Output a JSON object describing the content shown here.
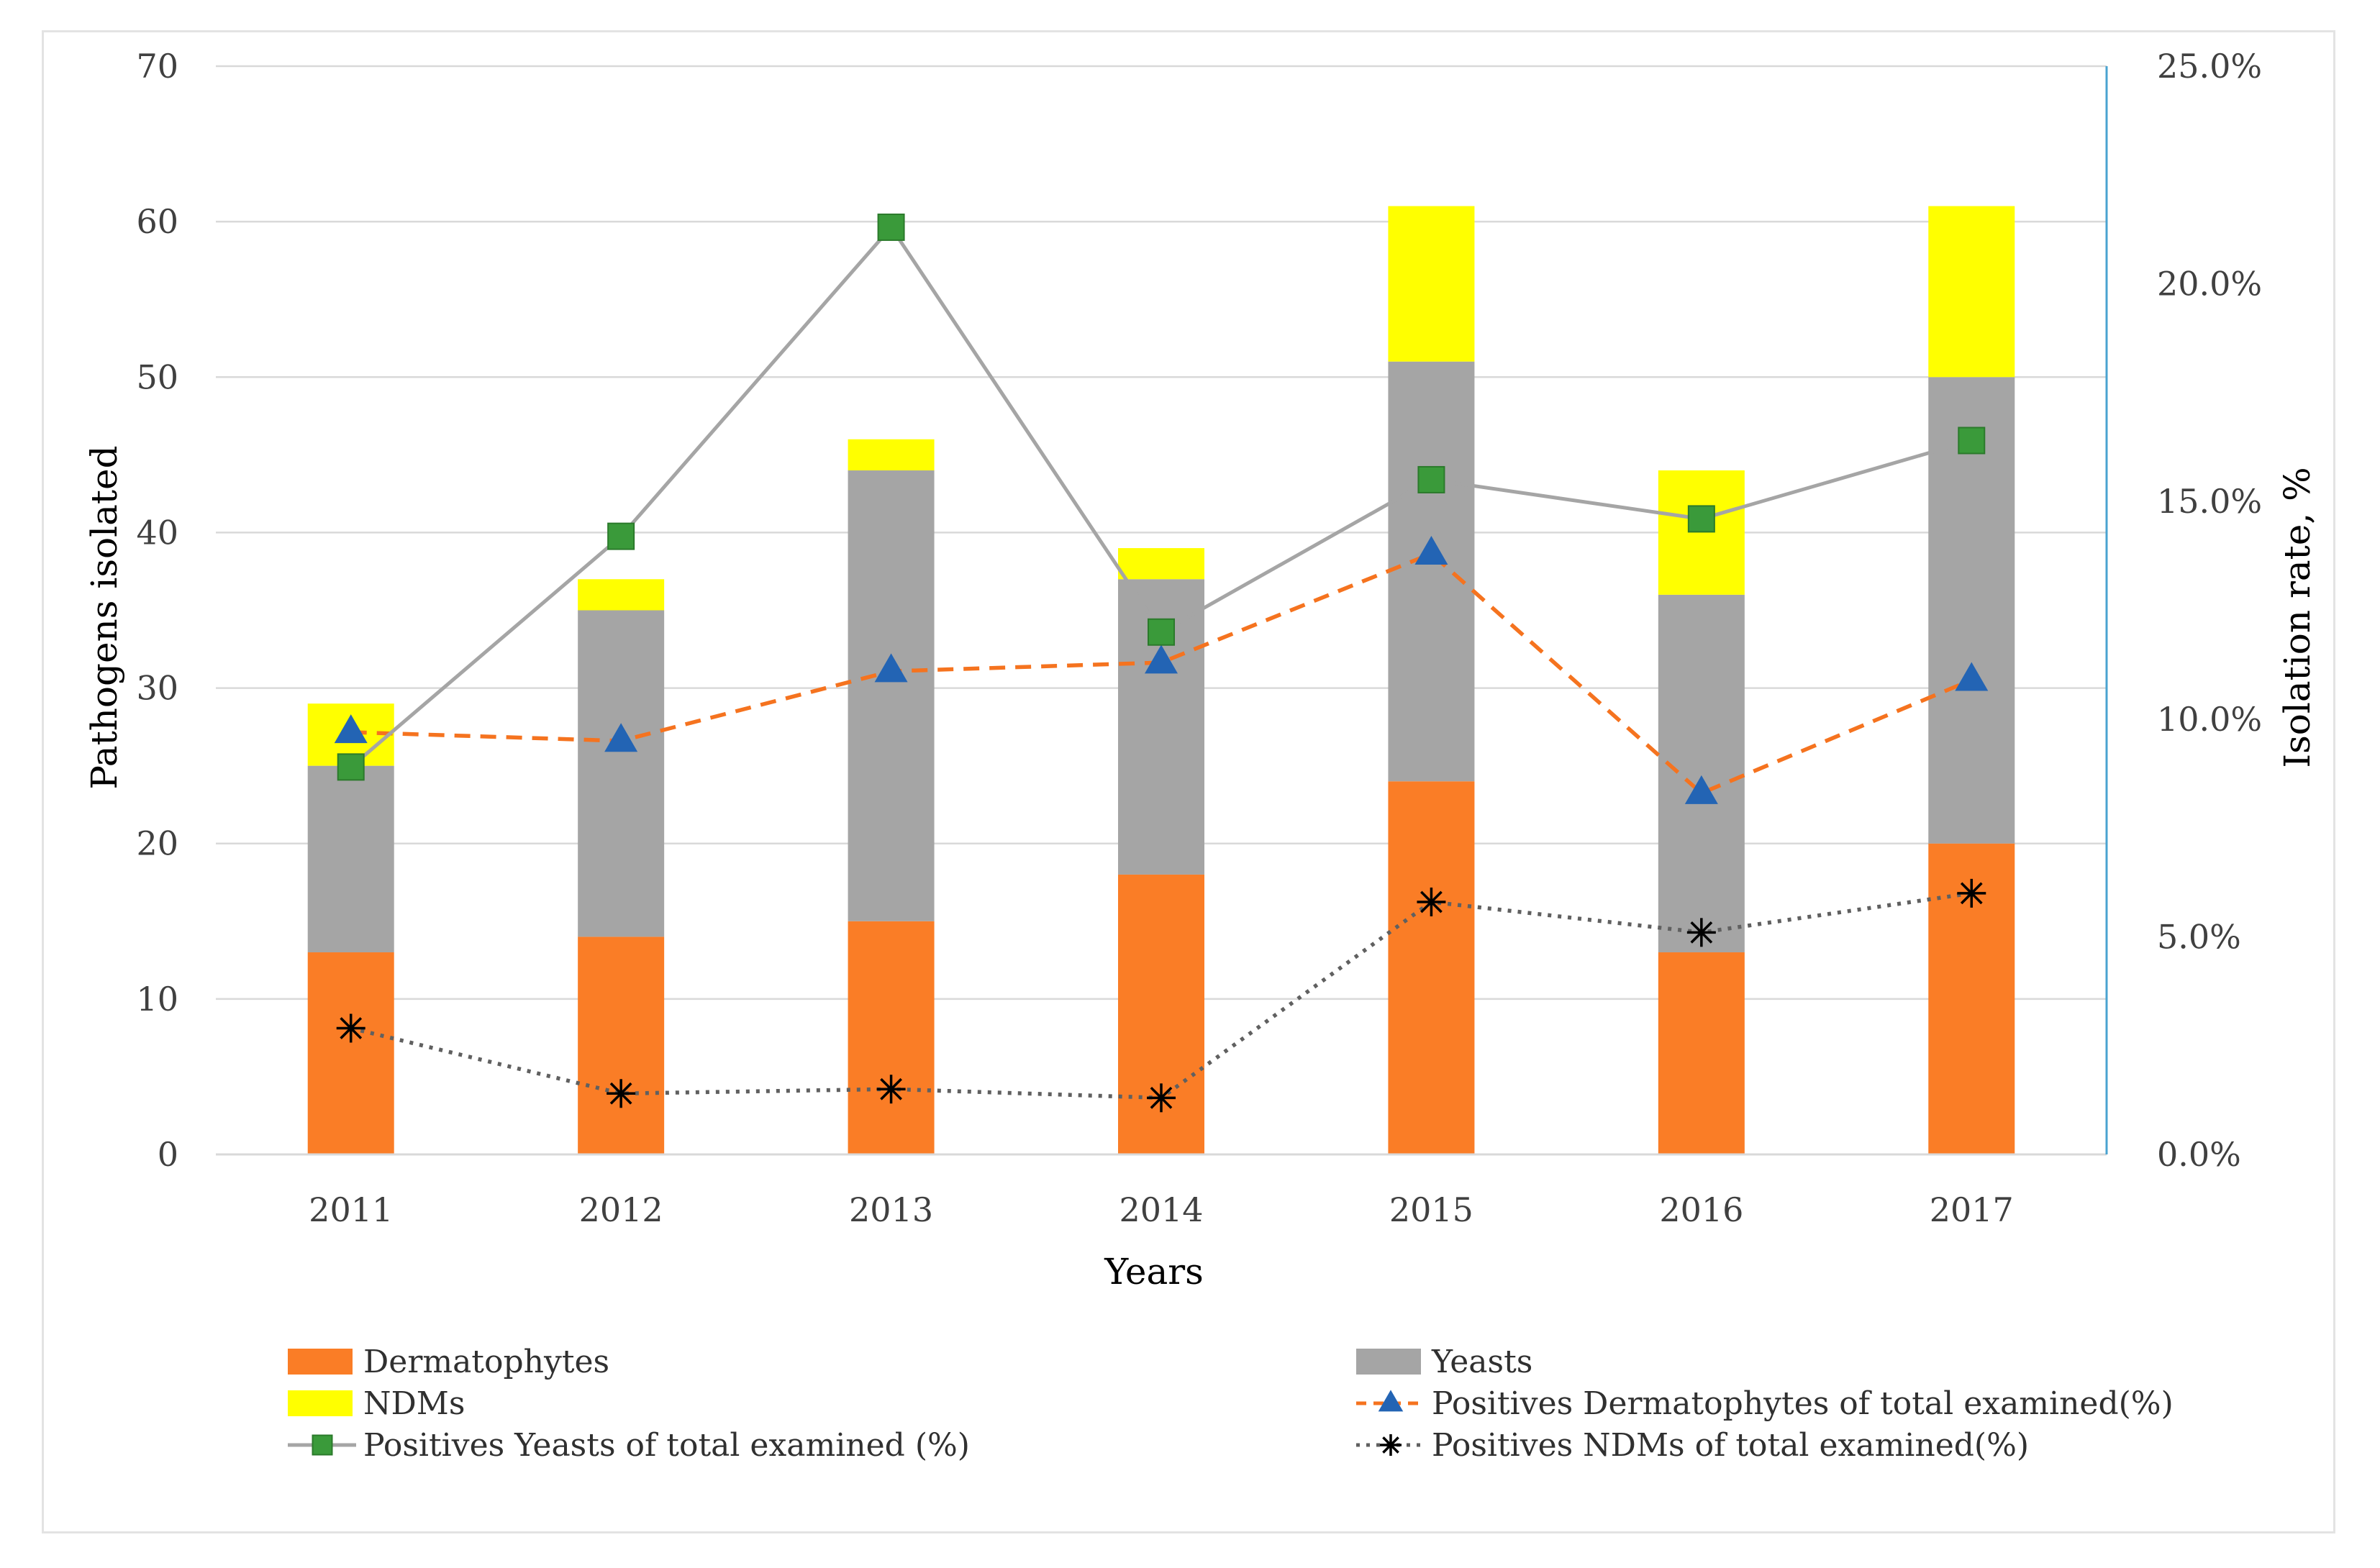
{
  "chart_data": {
    "type": "bar",
    "stacked": true,
    "categories": [
      "2011",
      "2012",
      "2013",
      "2014",
      "2015",
      "2016",
      "2017"
    ],
    "series": [
      {
        "name": "Dermatophytes",
        "kind": "bar",
        "color": "#fa7d26",
        "values": [
          13,
          14,
          15,
          18,
          24,
          13,
          20
        ]
      },
      {
        "name": "Yeasts",
        "kind": "bar",
        "color": "#a5a5a5",
        "values": [
          12,
          21,
          29,
          19,
          27,
          23,
          30
        ]
      },
      {
        "name": "NDMs",
        "kind": "bar",
        "color": "#ffff00",
        "values": [
          4,
          2,
          2,
          2,
          10,
          8,
          11
        ]
      },
      {
        "name": "Positives Dermatophytes of total examined(%)",
        "kind": "line",
        "axis": "right",
        "color": "#f5731f",
        "marker_color": "#2364b4",
        "marker": "triangle",
        "dash": "dashed",
        "values": [
          9.7,
          9.5,
          11.1,
          11.3,
          13.8,
          8.3,
          10.9
        ]
      },
      {
        "name": "Positives Yeasts of total examined (%)",
        "kind": "line",
        "axis": "right",
        "color": "#a5a5a5",
        "marker_color": "#3a9a3a",
        "marker": "square",
        "dash": "solid",
        "values": [
          8.9,
          14.2,
          21.3,
          12.0,
          15.5,
          14.6,
          16.4
        ]
      },
      {
        "name": "Positives NDMs of  total examined(%)",
        "kind": "line",
        "axis": "right",
        "color": "#606060",
        "marker_color": "#000000",
        "marker": "asterisk",
        "dash": "dotted",
        "values": [
          2.9,
          1.4,
          1.5,
          1.3,
          5.8,
          5.1,
          6.0
        ]
      }
    ],
    "xlabel": "Years",
    "ylabel": "Pathogens isolated",
    "y2label": "Isolation rate, %",
    "ylim": [
      0,
      70
    ],
    "y2lim": [
      0,
      25
    ],
    "yticks": [
      "0",
      "10",
      "20",
      "30",
      "40",
      "50",
      "60",
      "70"
    ],
    "y2ticks": [
      "0.0%",
      "5.0%",
      "10.0%",
      "15.0%",
      "20.0%",
      "25.0%"
    ],
    "grid": true,
    "legend_position": "bottom",
    "legend_order": [
      0,
      1,
      2,
      3,
      4,
      5
    ]
  }
}
